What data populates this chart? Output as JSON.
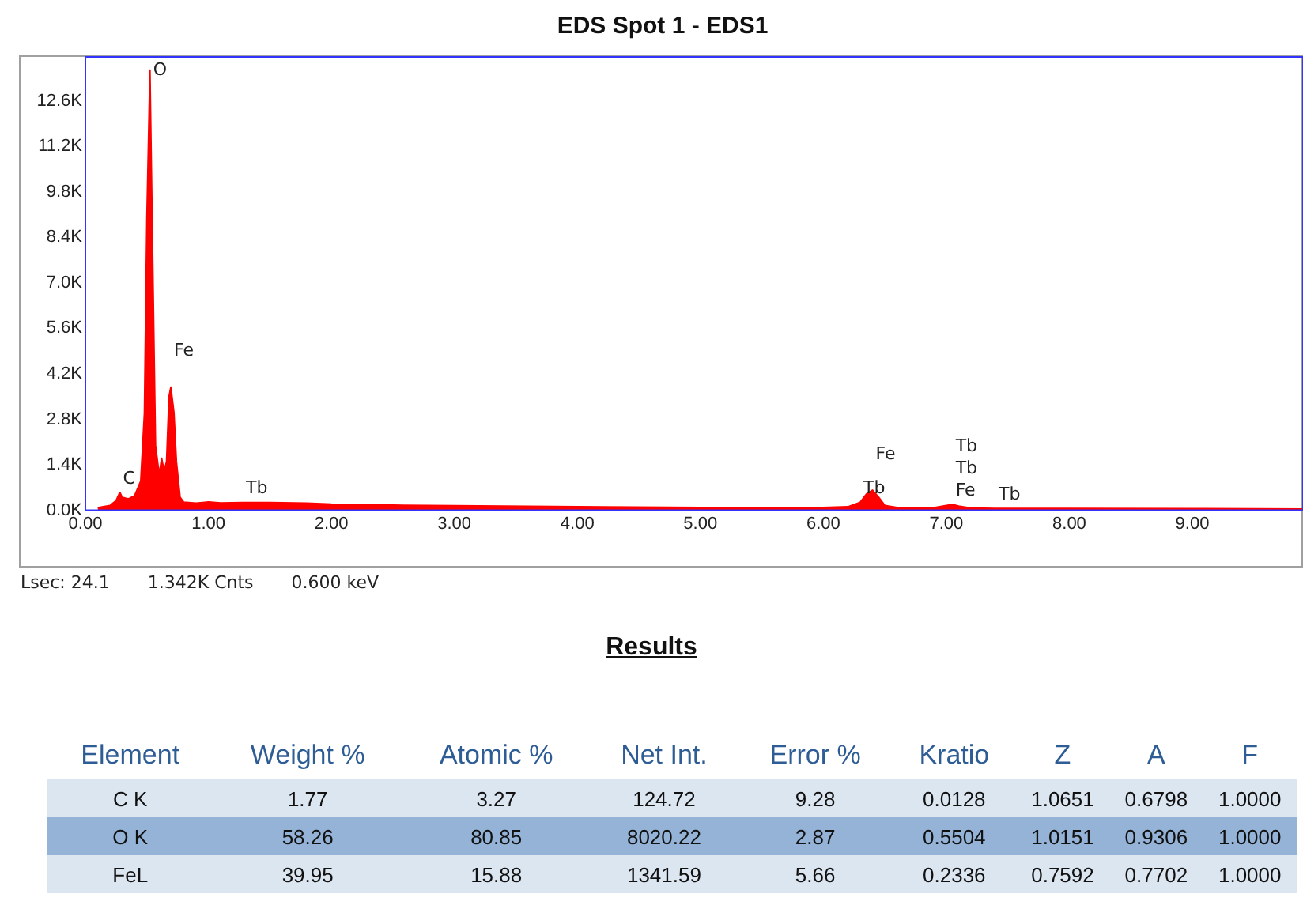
{
  "chart_data": [
    {
      "type": "area",
      "title": "EDS Spot 1 - EDS1",
      "x": [
        0.1,
        0.2,
        0.25,
        0.28,
        0.3,
        0.35,
        0.4,
        0.45,
        0.48,
        0.5,
        0.525,
        0.55,
        0.57,
        0.6,
        0.62,
        0.64,
        0.66,
        0.68,
        0.695,
        0.72,
        0.74,
        0.77,
        0.8,
        0.9,
        1.0,
        1.1,
        1.28,
        1.5,
        1.8,
        2.0,
        2.5,
        3.0,
        4.0,
        5.0,
        6.0,
        6.2,
        6.3,
        6.35,
        6.4,
        6.45,
        6.5,
        6.6,
        6.9,
        7.0,
        7.05,
        7.1,
        7.2,
        7.4,
        8.0,
        9.0,
        9.9
      ],
      "series": [
        {
          "color": "#ff0000",
          "values": [
            80,
            150,
            300,
            550,
            400,
            350,
            450,
            900,
            3000,
            9000,
            13540,
            7000,
            2000,
            1100,
            1600,
            1200,
            1500,
            3500,
            3790,
            3000,
            1500,
            400,
            250,
            220,
            260,
            230,
            240,
            240,
            220,
            190,
            160,
            140,
            110,
            90,
            90,
            110,
            250,
            500,
            620,
            400,
            150,
            90,
            80,
            150,
            180,
            130,
            70,
            60,
            60,
            50,
            40
          ]
        }
      ],
      "xlim": [
        0,
        9.9
      ],
      "ylim": [
        0,
        13950
      ],
      "xticks": [
        {
          "value": 0,
          "label": "0.00"
        },
        {
          "value": 1,
          "label": "1.00"
        },
        {
          "value": 2,
          "label": "2.00"
        },
        {
          "value": 3,
          "label": "3.00"
        },
        {
          "value": 4,
          "label": "4.00"
        },
        {
          "value": 5,
          "label": "5.00"
        },
        {
          "value": 6,
          "label": "6.00"
        },
        {
          "value": 7,
          "label": "7.00"
        },
        {
          "value": 8,
          "label": "8.00"
        },
        {
          "value": 9,
          "label": "9.00"
        }
      ],
      "yticks": [
        {
          "value": 0,
          "label": "0.0K"
        },
        {
          "value": 1400,
          "label": "1.4K"
        },
        {
          "value": 2800,
          "label": "2.8K"
        },
        {
          "value": 4200,
          "label": "4.2K"
        },
        {
          "value": 5600,
          "label": "5.6K"
        },
        {
          "value": 7000,
          "label": "7.0K"
        },
        {
          "value": 8400,
          "label": "8.4K"
        },
        {
          "value": 9800,
          "label": "9.8K"
        },
        {
          "value": 11200,
          "label": "11.2K"
        },
        {
          "value": 12600,
          "label": "12.6K"
        }
      ],
      "grid": false,
      "legend": false,
      "annotations": [
        {
          "text": "O",
          "x": 0.525,
          "y": 13540
        },
        {
          "text": "C",
          "x": 0.28,
          "y": 550
        },
        {
          "text": "Fe",
          "x": 0.695,
          "y": 3790
        },
        {
          "text": "Tb",
          "x": 1.28,
          "y": 240
        },
        {
          "text": "Tb",
          "x": 6.3,
          "y": 250
        },
        {
          "text": "Fe",
          "x": 6.4,
          "y": 620
        },
        {
          "text": "Fe",
          "x": 7.05,
          "y": 180
        },
        {
          "text": "Tb",
          "x": 7.05,
          "y": 180
        },
        {
          "text": "Tb",
          "x": 7.05,
          "y": 180
        },
        {
          "text": "Tb",
          "x": 7.4,
          "y": 60
        },
        "Lsec: 24.1",
        "1.342K Cnts",
        "0.600 keV"
      ]
    },
    {
      "type": "other",
      "title": "Results",
      "categories": [
        "Element",
        "Weight %",
        "Atomic %",
        "Net Int.",
        "Error %",
        "Kratio",
        "Z",
        "A",
        "F"
      ],
      "y_categories": [
        "C K",
        "O K",
        "FeL"
      ],
      "cell_labels": [
        [
          "1.77",
          "3.27",
          "124.72",
          "9.28",
          "0.0128",
          "1.0651",
          "0.6798",
          "1.0000"
        ],
        [
          "58.26",
          "80.85",
          "8020.22",
          "2.87",
          "0.5504",
          "1.0151",
          "0.9306",
          "1.0000"
        ],
        [
          "39.95",
          "15.88",
          "1341.59",
          "5.66",
          "0.2336",
          "0.7592",
          "0.7702",
          "1.0000"
        ]
      ]
    }
  ]
}
